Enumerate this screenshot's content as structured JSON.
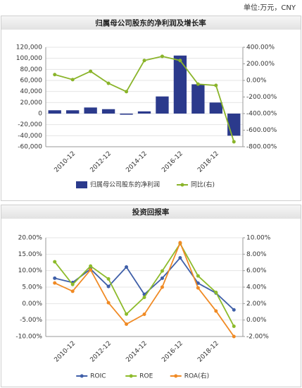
{
  "header": {
    "unit": "单位:万元，CNY"
  },
  "chart_data": [
    {
      "type": "combo",
      "title": "归属母公司股东的净利润及增长率",
      "categories": [
        null,
        "2010-12",
        null,
        "2012-12",
        null,
        "2014-12",
        null,
        "2016-12",
        null,
        "2018-12",
        null
      ],
      "ylim": [
        -60000,
        120000
      ],
      "yticks": [
        {
          "value": -60000,
          "label": "-60,000"
        },
        {
          "value": -40000,
          "label": "-40,000"
        },
        {
          "value": -20000,
          "label": "-20,000"
        },
        0,
        {
          "value": 20000,
          "label": "20,000"
        },
        {
          "value": 40000,
          "label": "40,000"
        },
        {
          "value": 60000,
          "label": "60,000"
        },
        {
          "value": 80000,
          "label": "80,000"
        },
        {
          "value": 100000,
          "label": "100,000"
        },
        {
          "value": 120000,
          "label": "120,000"
        }
      ],
      "y2lim": [
        -800,
        400
      ],
      "y2ticks": [
        {
          "value": -800,
          "label": "-800.00%"
        },
        {
          "value": -600,
          "label": "-600.00%"
        },
        {
          "value": -400,
          "label": "-400.00%"
        },
        {
          "value": -200,
          "label": "-200.00%"
        },
        {
          "value": 0,
          "label": "0.00%"
        },
        {
          "value": 200,
          "label": "200.00%"
        },
        {
          "value": 400,
          "label": "400.00%"
        }
      ],
      "grid": true,
      "series": [
        {
          "name": "归属母公司股东的净利润",
          "kind": "bar",
          "color": "#2b3a8c",
          "values": [
            6000,
            6000,
            11000,
            8000,
            -2000,
            4000,
            31000,
            105000,
            53000,
            20000,
            -40000
          ]
        },
        {
          "name": "同比(右)",
          "kind": "line",
          "axis": "y2",
          "color": "#8ab42a",
          "values": [
            70,
            10,
            110,
            -35,
            -135,
            240,
            290,
            240,
            -45,
            -60,
            -740
          ]
        }
      ]
    },
    {
      "type": "line",
      "title": "投资回报率",
      "categories": [
        null,
        "2010-12",
        null,
        "2012-12",
        null,
        "2014-12",
        null,
        "2016-12",
        null,
        "2018-12",
        null
      ],
      "ylim": [
        -10,
        20
      ],
      "yticks": [
        {
          "value": -10,
          "label": "-10.00%"
        },
        {
          "value": -5,
          "label": "-5.00%"
        },
        {
          "value": 0,
          "label": "0.00%"
        },
        {
          "value": 5,
          "label": "5.00%"
        },
        {
          "value": 10,
          "label": "10.00%"
        },
        {
          "value": 15,
          "label": "15.00%"
        },
        {
          "value": 20,
          "label": "20.00%"
        }
      ],
      "y2lim": [
        -2,
        10
      ],
      "y2ticks": [
        {
          "value": -2,
          "label": "-2.00%"
        },
        {
          "value": 0,
          "label": "0.00%"
        },
        {
          "value": 2,
          "label": "2.00%"
        },
        {
          "value": 4,
          "label": "4.00%"
        },
        {
          "value": 6,
          "label": "6.00%"
        },
        {
          "value": 8,
          "label": "8.00%"
        },
        {
          "value": 10,
          "label": "10.00%"
        }
      ],
      "grid": true,
      "series": [
        {
          "name": "ROIC",
          "kind": "line",
          "color": "#3f5fa8",
          "values": [
            7.7,
            6.4,
            10.5,
            5.2,
            11.1,
            2.8,
            7.7,
            13.9,
            6.2,
            3.2,
            -1.9
          ]
        },
        {
          "name": "ROE",
          "kind": "line",
          "color": "#8dbb2b",
          "values": [
            12.7,
            5.8,
            11.4,
            7.5,
            -3.2,
            1.9,
            9.9,
            18.2,
            8.4,
            3.4,
            -6.9
          ]
        },
        {
          "name": "ROA(右)",
          "kind": "line",
          "axis": "y2",
          "color": "#f08a24",
          "values": [
            4.5,
            3.5,
            6.1,
            2.1,
            -0.5,
            0.7,
            4.0,
            9.4,
            3.9,
            1.1,
            -2.0
          ]
        }
      ]
    }
  ]
}
